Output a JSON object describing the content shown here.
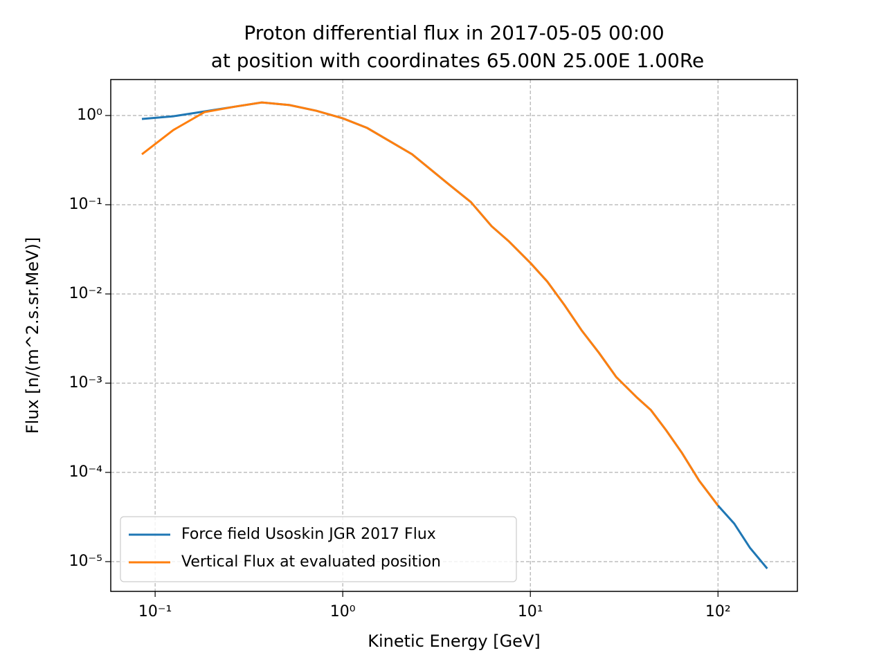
{
  "chart_data": {
    "type": "line",
    "title": [
      "Proton differential flux in 2017-05-05 00:00",
      "at position with coordinates 65.00N 25.00E 1.00Re"
    ],
    "x_label": "Kinetic Energy [GeV]",
    "y_label": "Flux [n/(m^2.s.sr.MeV)]",
    "x_log": true,
    "y_log": true,
    "grid": true,
    "legend": "lower left",
    "xlim": [
      0.058,
      265
    ],
    "ylim": [
      4.64e-06,
      2.53
    ],
    "xticks": [
      {
        "value": 0.1,
        "label": "10⁻¹"
      },
      {
        "value": 1,
        "label": "10⁰"
      },
      {
        "value": 10,
        "label": "10¹"
      },
      {
        "value": 100,
        "label": "10²"
      }
    ],
    "yticks": [
      {
        "value": 1e-05,
        "label": "10⁻⁵"
      },
      {
        "value": 0.0001,
        "label": "10⁻⁴"
      },
      {
        "value": 0.001,
        "label": "10⁻³"
      },
      {
        "value": 0.01,
        "label": "10⁻²"
      },
      {
        "value": 0.1,
        "label": "10⁻¹"
      },
      {
        "value": 1,
        "label": "10⁰"
      }
    ],
    "x": [
      0.085,
      0.125,
      0.183,
      0.268,
      0.37,
      0.52,
      0.724,
      1.0,
      1.35,
      2.34,
      3.73,
      4.82,
      6.21,
      7.69,
      10,
      12.3,
      15.2,
      18.8,
      23.2,
      28.7,
      37.0,
      43.9,
      52.9,
      64.3,
      79.4,
      100,
      122,
      148,
      183
    ],
    "series": [
      {
        "name": "Force field Usoskin JGR 2017 Flux",
        "color": "#1f77b4",
        "values": [
          0.914,
          0.98,
          1.11,
          1.26,
          1.4,
          1.31,
          1.13,
          0.93,
          0.725,
          0.368,
          0.165,
          0.107,
          0.0575,
          0.0388,
          0.0223,
          0.0138,
          0.0075,
          0.00388,
          0.00219,
          0.00117,
          0.00069,
          0.000499,
          0.000297,
          0.000165,
          8.07e-05,
          4.25e-05,
          2.67e-05,
          1.43e-05,
          8.36e-06
        ]
      },
      {
        "name": "Vertical Flux at evaluated position",
        "color": "#ff7f0e",
        "values": [
          0.368,
          0.687,
          1.09,
          1.26,
          1.4,
          1.31,
          1.13,
          0.93,
          0.725,
          0.368,
          0.165,
          0.107,
          0.0575,
          0.0388,
          0.0223,
          0.0138,
          0.0075,
          0.00388,
          0.00219,
          0.00117,
          0.00069,
          0.000499,
          0.000297,
          0.000165,
          8.07e-05,
          4.25e-05,
          null,
          null,
          null
        ]
      }
    ]
  }
}
